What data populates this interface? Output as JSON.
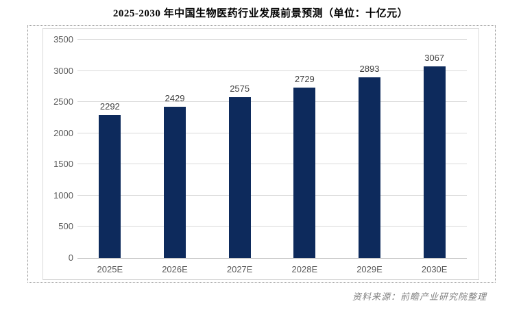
{
  "chart_data": {
    "type": "bar",
    "title": "2025-2030 年中国生物医药行业发展前景预测（单位：十亿元）",
    "unit": "十亿元",
    "categories": [
      "2025E",
      "2026E",
      "2027E",
      "2028E",
      "2029E",
      "2030E"
    ],
    "values": [
      2292,
      2429,
      2575,
      2729,
      2893,
      3067
    ],
    "data_labels_shown": true,
    "xlabel": "",
    "ylabel": "",
    "ylim": [
      0,
      3500
    ],
    "yticks": [
      0,
      500,
      1000,
      1500,
      2000,
      2500,
      3000,
      3500
    ],
    "grid": true,
    "legend_position": "none",
    "source": "资料来源：前瞻产业研究院整理",
    "colors": {
      "bar": "#0d2a5c",
      "gridline": "#d9d9d9",
      "axis_line": "#bfbfbf",
      "axis_text": "#595959",
      "data_label_text": "#404040",
      "title_text": "#000000",
      "source_text": "#808080"
    }
  }
}
